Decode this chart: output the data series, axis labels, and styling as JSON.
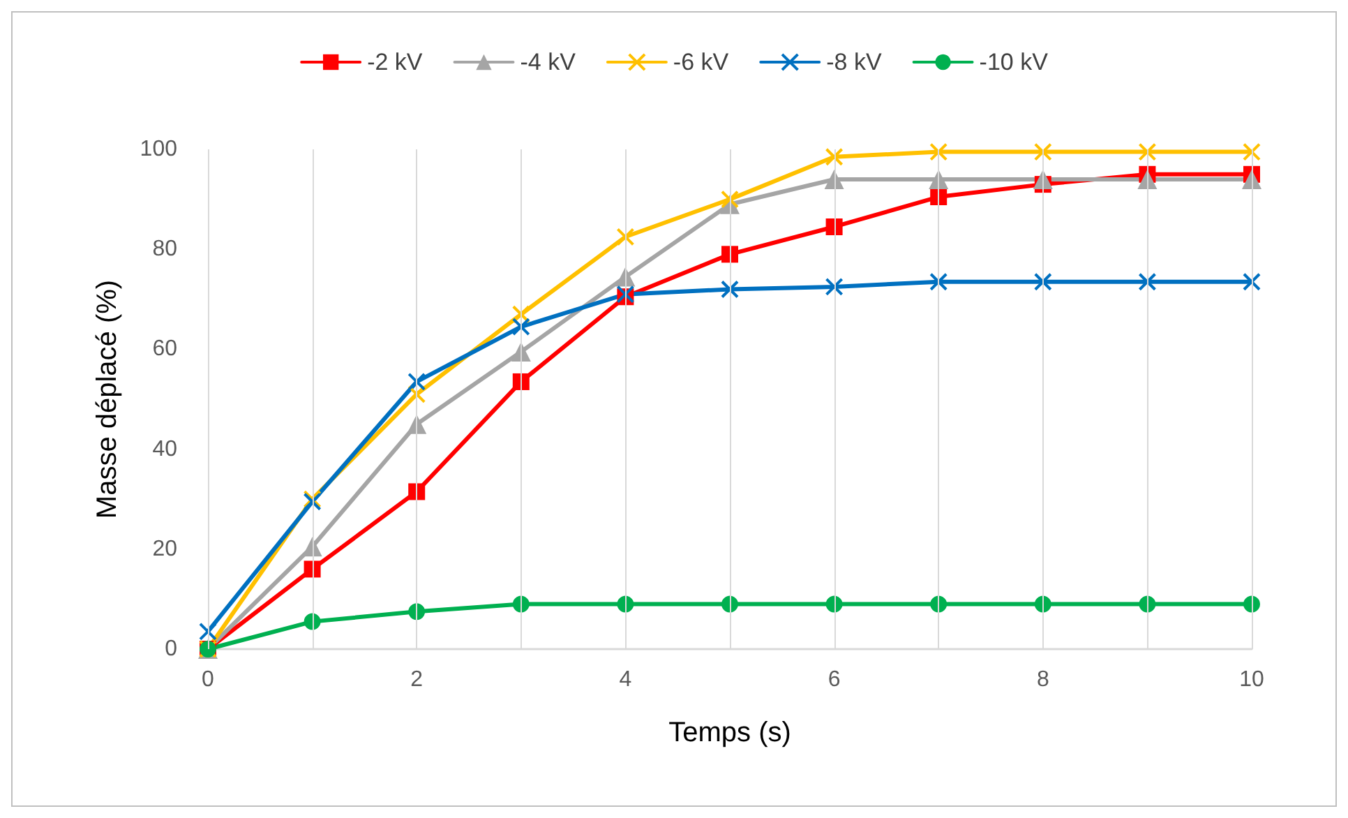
{
  "chart_data": {
    "type": "line",
    "xlabel": "Temps (s)",
    "ylabel": "Masse déplacé (%)",
    "x": [
      0,
      1,
      2,
      3,
      4,
      5,
      6,
      7,
      8,
      9,
      10
    ],
    "series": [
      {
        "name": "-2 kV",
        "color": "#ff0000",
        "marker": "square",
        "values": [
          0,
          16,
          31.5,
          53.5,
          70.5,
          79,
          84.5,
          90.5,
          93,
          95,
          95
        ]
      },
      {
        "name": "-4 kV",
        "color": "#a5a5a5",
        "marker": "triangle",
        "values": [
          0,
          20.5,
          45,
          59.5,
          74.5,
          89,
          94,
          94,
          94,
          94,
          94
        ]
      },
      {
        "name": "-6 kV",
        "color": "#ffc000",
        "marker": "cross",
        "values": [
          0,
          30,
          51,
          67,
          82.5,
          90,
          98.5,
          99.5,
          99.5,
          99.5,
          99.5
        ]
      },
      {
        "name": "-8 kV",
        "color": "#0070c0",
        "marker": "cross",
        "values": [
          3.5,
          29.5,
          53.5,
          64.5,
          71,
          72,
          72.5,
          73.5,
          73.5,
          73.5,
          73.5
        ]
      },
      {
        "name": "-10 kV",
        "color": "#00b050",
        "marker": "circle",
        "values": [
          0,
          5.5,
          7.5,
          9,
          9,
          9,
          9,
          9,
          9,
          9,
          9
        ]
      }
    ],
    "xlim": [
      0,
      10
    ],
    "xticks": [
      0,
      {
        "value": 1,
        "label": null
      },
      2,
      {
        "value": 3,
        "label": null
      },
      4,
      {
        "value": 5,
        "label": null
      },
      6,
      {
        "value": 7,
        "label": null
      },
      8,
      {
        "value": 9,
        "label": null
      },
      10
    ],
    "ylim": [
      0,
      100
    ],
    "yticks": [
      0,
      20,
      40,
      60,
      80,
      100
    ],
    "grid": "x",
    "legend": "top",
    "line_style": "solid"
  }
}
